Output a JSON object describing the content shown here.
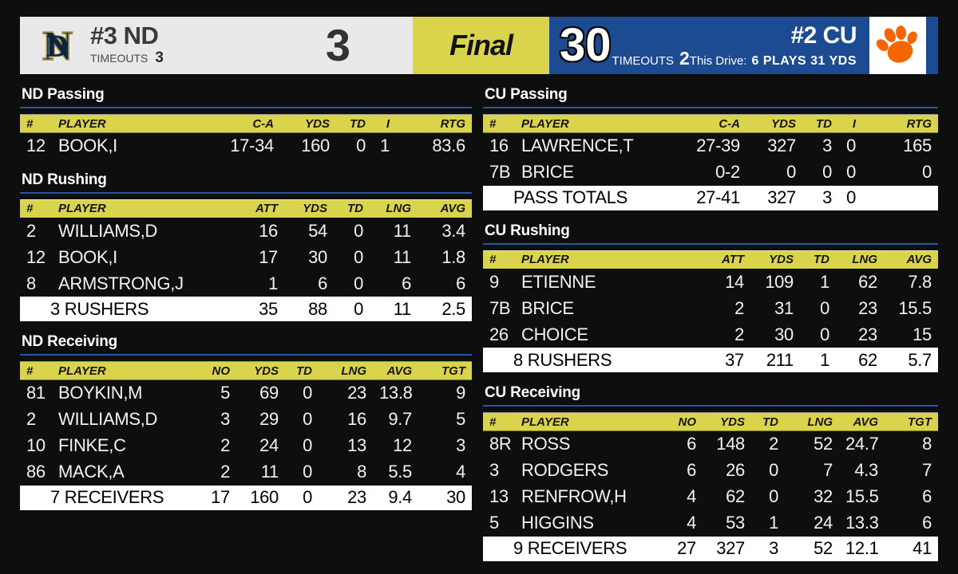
{
  "colors": {
    "background": "#0e0e0e",
    "header_yellow": "#d9d44c",
    "panel_blue": "#1c4b92",
    "panel_gray": "#e9e9e9",
    "underline_blue": "#2456ac",
    "nd_navy": "#0c2340",
    "nd_gold": "#a3914c",
    "paw_orange": "#f56600",
    "totals_white": "#ffffff"
  },
  "scoreboard": {
    "nd": {
      "logo_icon": "nd-monogram-icon",
      "rank_team": "#3 ND",
      "timeouts_label": "TIMEOUTS",
      "timeouts": "3",
      "score": "3"
    },
    "status": "Final",
    "cu": {
      "score": "30",
      "timeouts_label": "TIMEOUTS",
      "timeouts": "2",
      "drive_label": "This Drive:",
      "drive_value": "6 PLAYS 31 YDS",
      "rank_team": "#2 CU",
      "logo_icon": "tiger-paw-icon"
    }
  },
  "tables": [
    {
      "id": "nd-passing",
      "column": "left",
      "type": "passing",
      "title": "ND Passing",
      "columns": [
        "#",
        "PLAYER",
        "C-A",
        "YDS",
        "TD",
        "I",
        "RTG"
      ],
      "rows": [
        [
          "12",
          "BOOK,I",
          "17-34",
          "160",
          "0",
          "1",
          "83.6"
        ]
      ],
      "totals": null
    },
    {
      "id": "nd-rushing",
      "column": "left",
      "type": "rushing",
      "title": "ND Rushing",
      "columns": [
        "#",
        "PLAYER",
        "ATT",
        "YDS",
        "TD",
        "LNG",
        "AVG"
      ],
      "rows": [
        [
          "2",
          "WILLIAMS,D",
          "16",
          "54",
          "0",
          "11",
          "3.4"
        ],
        [
          "12",
          "BOOK,I",
          "17",
          "30",
          "0",
          "11",
          "1.8"
        ],
        [
          "8",
          "ARMSTRONG,J",
          "1",
          "6",
          "0",
          "6",
          "6"
        ]
      ],
      "totals": {
        "label": "3 RUSHERS",
        "values": [
          "35",
          "88",
          "0",
          "11",
          "2.5"
        ]
      }
    },
    {
      "id": "nd-receiving",
      "column": "left",
      "type": "receiving",
      "title": "ND Receiving",
      "columns": [
        "#",
        "PLAYER",
        "NO",
        "YDS",
        "TD",
        "LNG",
        "AVG",
        "TGT"
      ],
      "rows": [
        [
          "81",
          "BOYKIN,M",
          "5",
          "69",
          "0",
          "23",
          "13.8",
          "9"
        ],
        [
          "2",
          "WILLIAMS,D",
          "3",
          "29",
          "0",
          "16",
          "9.7",
          "5"
        ],
        [
          "10",
          "FINKE,C",
          "2",
          "24",
          "0",
          "13",
          "12",
          "3"
        ],
        [
          "86",
          "MACK,A",
          "2",
          "11",
          "0",
          "8",
          "5.5",
          "4"
        ]
      ],
      "totals": {
        "label": "7 RECEIVERS",
        "values": [
          "17",
          "160",
          "0",
          "23",
          "9.4",
          "30"
        ]
      }
    },
    {
      "id": "cu-passing",
      "column": "right",
      "type": "passing",
      "title": "CU Passing",
      "columns": [
        "#",
        "PLAYER",
        "C-A",
        "YDS",
        "TD",
        "I",
        "RTG"
      ],
      "rows": [
        [
          "16",
          "LAWRENCE,T",
          "27-39",
          "327",
          "3",
          "0",
          "165"
        ],
        [
          "7B",
          "BRICE",
          "0-2",
          "0",
          "0",
          "0",
          "0"
        ]
      ],
      "totals": {
        "label": "PASS TOTALS",
        "values": [
          "27-41",
          "327",
          "3",
          "0",
          ""
        ]
      }
    },
    {
      "id": "cu-rushing",
      "column": "right",
      "type": "rushing",
      "title": "CU Rushing",
      "columns": [
        "#",
        "PLAYER",
        "ATT",
        "YDS",
        "TD",
        "LNG",
        "AVG"
      ],
      "rows": [
        [
          "9",
          "ETIENNE",
          "14",
          "109",
          "1",
          "62",
          "7.8"
        ],
        [
          "7B",
          "BRICE",
          "2",
          "31",
          "0",
          "23",
          "15.5"
        ],
        [
          "26",
          "CHOICE",
          "2",
          "30",
          "0",
          "23",
          "15"
        ]
      ],
      "totals": {
        "label": "8 RUSHERS",
        "values": [
          "37",
          "211",
          "1",
          "62",
          "5.7"
        ]
      }
    },
    {
      "id": "cu-receiving",
      "column": "right",
      "type": "receiving",
      "title": "CU Receiving",
      "columns": [
        "#",
        "PLAYER",
        "NO",
        "YDS",
        "TD",
        "LNG",
        "AVG",
        "TGT"
      ],
      "rows": [
        [
          "8R",
          "ROSS",
          "6",
          "148",
          "2",
          "52",
          "24.7",
          "8"
        ],
        [
          "3",
          "RODGERS",
          "6",
          "26",
          "0",
          "7",
          "4.3",
          "7"
        ],
        [
          "13",
          "RENFROW,H",
          "4",
          "62",
          "0",
          "32",
          "15.5",
          "6"
        ],
        [
          "5",
          "HIGGINS",
          "4",
          "53",
          "1",
          "24",
          "13.3",
          "6"
        ]
      ],
      "totals": {
        "label": "9 RECEIVERS",
        "values": [
          "27",
          "327",
          "3",
          "52",
          "12.1",
          "41"
        ]
      }
    }
  ]
}
